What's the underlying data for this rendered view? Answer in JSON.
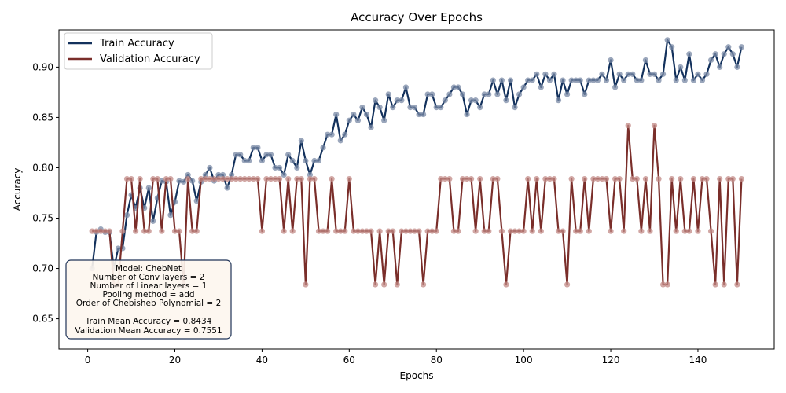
{
  "chart_data": {
    "type": "line",
    "title": "Accuracy Over Epochs",
    "xlabel": "Epochs",
    "ylabel": "Accuracy",
    "xlim": [
      -6.6,
      157.5
    ],
    "ylim": [
      0.62,
      0.937
    ],
    "xticks": [
      0,
      20,
      40,
      60,
      80,
      100,
      120,
      140
    ],
    "yticks": [
      0.65,
      0.7,
      0.75,
      0.8,
      0.85,
      0.9
    ],
    "ytick_labels": [
      "0.65",
      "0.70",
      "0.75",
      "0.80",
      "0.85",
      "0.90"
    ],
    "legend_position": "top-left",
    "grid": false,
    "x": [
      1,
      2,
      3,
      4,
      5,
      6,
      7,
      8,
      9,
      10,
      11,
      12,
      13,
      14,
      15,
      16,
      17,
      18,
      19,
      20,
      21,
      22,
      23,
      24,
      25,
      26,
      27,
      28,
      29,
      30,
      31,
      32,
      33,
      34,
      35,
      36,
      37,
      38,
      39,
      40,
      41,
      42,
      43,
      44,
      45,
      46,
      47,
      48,
      49,
      50,
      51,
      52,
      53,
      54,
      55,
      56,
      57,
      58,
      59,
      60,
      61,
      62,
      63,
      64,
      65,
      66,
      67,
      68,
      69,
      70,
      71,
      72,
      73,
      74,
      75,
      76,
      77,
      78,
      79,
      80,
      81,
      82,
      83,
      84,
      85,
      86,
      87,
      88,
      89,
      90,
      91,
      92,
      93,
      94,
      95,
      96,
      97,
      98,
      99,
      100,
      101,
      102,
      103,
      104,
      105,
      106,
      107,
      108,
      109,
      110,
      111,
      112,
      113,
      114,
      115,
      116,
      117,
      118,
      119,
      120,
      121,
      122,
      123,
      124,
      125,
      126,
      127,
      128,
      129,
      130,
      131,
      132,
      133,
      134,
      135,
      136,
      137,
      138,
      139,
      140,
      141,
      142,
      143,
      144,
      145,
      146,
      147,
      148,
      149,
      150
    ],
    "series": [
      {
        "name": "Train Accuracy",
        "color": "#13315c",
        "marker_color": "#7a8aa6",
        "values": [
          0.7,
          0.736,
          0.739,
          0.736,
          0.736,
          0.7,
          0.72,
          0.72,
          0.753,
          0.773,
          0.76,
          0.78,
          0.76,
          0.78,
          0.747,
          0.77,
          0.787,
          0.786,
          0.753,
          0.766,
          0.787,
          0.786,
          0.793,
          0.787,
          0.767,
          0.786,
          0.793,
          0.8,
          0.787,
          0.793,
          0.793,
          0.78,
          0.793,
          0.813,
          0.813,
          0.807,
          0.807,
          0.82,
          0.82,
          0.807,
          0.813,
          0.813,
          0.8,
          0.8,
          0.793,
          0.813,
          0.807,
          0.8,
          0.827,
          0.807,
          0.793,
          0.807,
          0.807,
          0.82,
          0.833,
          0.833,
          0.853,
          0.827,
          0.833,
          0.847,
          0.853,
          0.847,
          0.86,
          0.853,
          0.84,
          0.867,
          0.86,
          0.847,
          0.873,
          0.86,
          0.867,
          0.867,
          0.88,
          0.86,
          0.86,
          0.853,
          0.853,
          0.873,
          0.873,
          0.86,
          0.86,
          0.867,
          0.873,
          0.88,
          0.88,
          0.873,
          0.853,
          0.867,
          0.867,
          0.86,
          0.873,
          0.873,
          0.887,
          0.873,
          0.887,
          0.867,
          0.887,
          0.86,
          0.873,
          0.88,
          0.887,
          0.887,
          0.893,
          0.88,
          0.893,
          0.887,
          0.893,
          0.867,
          0.887,
          0.873,
          0.887,
          0.887,
          0.887,
          0.873,
          0.887,
          0.887,
          0.887,
          0.893,
          0.887,
          0.907,
          0.88,
          0.893,
          0.887,
          0.893,
          0.893,
          0.887,
          0.887,
          0.907,
          0.893,
          0.893,
          0.887,
          0.893,
          0.927,
          0.92,
          0.887,
          0.9,
          0.887,
          0.913,
          0.887,
          0.893,
          0.887,
          0.893,
          0.907,
          0.913,
          0.9,
          0.913,
          0.92,
          0.913,
          0.9,
          0.92
        ]
      },
      {
        "name": "Validation Accuracy",
        "color": "#7a2e2a",
        "marker_color": "#c28a86",
        "values": [
          0.737,
          0.737,
          0.737,
          0.737,
          0.737,
          0.684,
          0.684,
          0.737,
          0.789,
          0.789,
          0.737,
          0.789,
          0.737,
          0.737,
          0.789,
          0.789,
          0.737,
          0.789,
          0.789,
          0.737,
          0.737,
          0.684,
          0.789,
          0.737,
          0.737,
          0.789,
          0.789,
          0.789,
          0.789,
          0.789,
          0.789,
          0.789,
          0.789,
          0.789,
          0.789,
          0.789,
          0.789,
          0.789,
          0.789,
          0.737,
          0.789,
          0.789,
          0.789,
          0.789,
          0.737,
          0.789,
          0.737,
          0.789,
          0.789,
          0.684,
          0.789,
          0.789,
          0.737,
          0.737,
          0.737,
          0.789,
          0.737,
          0.737,
          0.737,
          0.789,
          0.737,
          0.737,
          0.737,
          0.737,
          0.737,
          0.684,
          0.737,
          0.684,
          0.737,
          0.737,
          0.684,
          0.737,
          0.737,
          0.737,
          0.737,
          0.737,
          0.684,
          0.737,
          0.737,
          0.737,
          0.789,
          0.789,
          0.789,
          0.737,
          0.737,
          0.789,
          0.789,
          0.789,
          0.737,
          0.789,
          0.737,
          0.737,
          0.789,
          0.789,
          0.737,
          0.684,
          0.737,
          0.737,
          0.737,
          0.737,
          0.789,
          0.737,
          0.789,
          0.737,
          0.789,
          0.789,
          0.789,
          0.737,
          0.737,
          0.684,
          0.789,
          0.737,
          0.737,
          0.789,
          0.737,
          0.789,
          0.789,
          0.789,
          0.789,
          0.737,
          0.789,
          0.789,
          0.737,
          0.842,
          0.789,
          0.789,
          0.737,
          0.789,
          0.737,
          0.842,
          0.789,
          0.684,
          0.684,
          0.789,
          0.737,
          0.789,
          0.737,
          0.737,
          0.789,
          0.737,
          0.789,
          0.789,
          0.737,
          0.684,
          0.789,
          0.684,
          0.789,
          0.789,
          0.684,
          0.789
        ]
      }
    ]
  },
  "info_box": {
    "lines": [
      "Model: ChebNet",
      "Number of Conv layers = 2",
      "Number of Linear layers = 1",
      "Pooling method = add",
      "Order of Chebisheb Polynomial = 2",
      "",
      "Train Mean Accuracy = 0.8434",
      "Validation Mean Accuracy = 0.7551"
    ]
  }
}
